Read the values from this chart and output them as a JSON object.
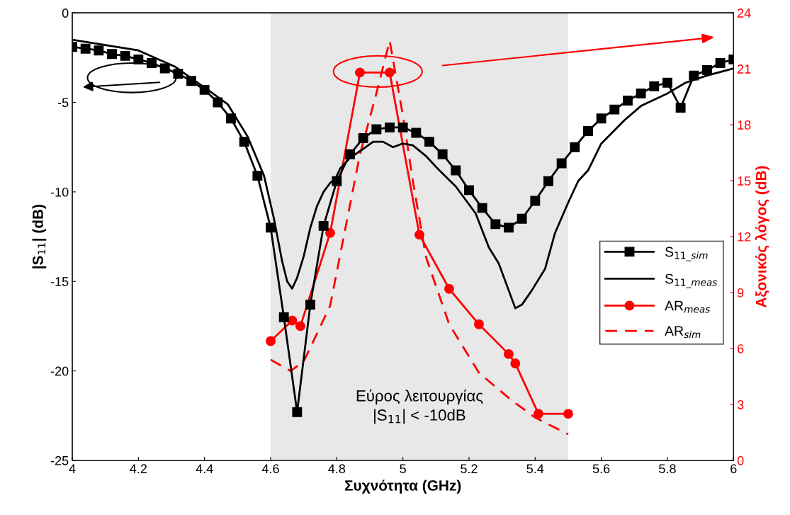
{
  "chart_data": {
    "type": "line",
    "xlabel": "Συχνότητα (GHz)",
    "ylabel": "|S$_{11}$| (dB)",
    "y2label": "Αξονικός λόγος (dB)",
    "xlim": [
      4,
      6
    ],
    "xticks": [
      4,
      4.2,
      4.4,
      4.6,
      4.8,
      5,
      5.2,
      5.4,
      5.6,
      5.8,
      6
    ],
    "ylim": [
      -25,
      0
    ],
    "yticks": [
      -25,
      -20,
      -15,
      -10,
      -5,
      0
    ],
    "y2lim": [
      0,
      24
    ],
    "y2ticks": [
      0,
      3,
      6,
      9,
      12,
      15,
      18,
      21,
      24
    ],
    "grid": false,
    "legend": "right",
    "bands": [
      {
        "axis": "x",
        "from": 4.6,
        "to": 5.5,
        "label": "Εύρος λειτουργίας\n|S$_{11}$| < -10dB",
        "color": "#e8e8e8"
      }
    ],
    "series": [
      {
        "name": "S$_{11_sim}$",
        "color": "#000000",
        "marker": "square",
        "line_style": "solid",
        "x": [
          4.0,
          4.04,
          4.08,
          4.12,
          4.16,
          4.2,
          4.24,
          4.28,
          4.32,
          4.36,
          4.4,
          4.44,
          4.48,
          4.52,
          4.56,
          4.6,
          4.64,
          4.68,
          4.72,
          4.76,
          4.8,
          4.84,
          4.88,
          4.92,
          4.96,
          5.0,
          5.04,
          5.08,
          5.12,
          5.16,
          5.2,
          5.24,
          5.28,
          5.32,
          5.36,
          5.4,
          5.44,
          5.48,
          5.52,
          5.56,
          5.6,
          5.64,
          5.68,
          5.72,
          5.76,
          5.8,
          5.84,
          5.88,
          5.92,
          5.96,
          6.0
        ],
        "values": [
          -1.9,
          -2.0,
          -2.1,
          -2.3,
          -2.4,
          -2.6,
          -2.8,
          -3.1,
          -3.4,
          -3.8,
          -4.3,
          -5.0,
          -5.9,
          -7.2,
          -9.1,
          -12.0,
          -17.0,
          -22.3,
          -16.3,
          -11.9,
          -9.4,
          -7.9,
          -7.0,
          -6.5,
          -6.4,
          -6.4,
          -6.7,
          -7.2,
          -7.9,
          -8.8,
          -9.9,
          -10.9,
          -11.8,
          -12.0,
          -11.5,
          -10.5,
          -9.4,
          -8.4,
          -7.5,
          -6.6,
          -5.9,
          -5.4,
          -4.9,
          -4.5,
          -4.1,
          -3.9,
          -5.3,
          -3.5,
          -3.2,
          -2.8,
          -2.6
        ]
      },
      {
        "name": "S$_{11_meas}$",
        "color": "#000000",
        "marker": "none",
        "line_style": "solid",
        "x": [
          4.0,
          4.1,
          4.2,
          4.31,
          4.41,
          4.47,
          4.53,
          4.58,
          4.61,
          4.635,
          4.65,
          4.665,
          4.68,
          4.7,
          4.72,
          4.74,
          4.76,
          4.78,
          4.795,
          4.81,
          4.84,
          4.88,
          4.91,
          4.94,
          4.97,
          5.0,
          5.03,
          5.07,
          5.105,
          5.16,
          5.22,
          5.26,
          5.29,
          5.32,
          5.34,
          5.36,
          5.39,
          5.43,
          5.46,
          5.5,
          5.53,
          5.56,
          5.6,
          5.67,
          5.72,
          5.8,
          5.855,
          5.92,
          5.98,
          6.0
        ],
        "values": [
          -1.5,
          -1.8,
          -2.1,
          -3.0,
          -4.3,
          -5.1,
          -6.9,
          -9.1,
          -11.5,
          -13.9,
          -15.0,
          -15.4,
          -14.8,
          -13.6,
          -12.0,
          -10.8,
          -10.0,
          -9.5,
          -9.3,
          -8.7,
          -8.1,
          -7.6,
          -7.2,
          -7.2,
          -7.5,
          -7.3,
          -7.4,
          -8.0,
          -8.7,
          -9.7,
          -11.2,
          -13.1,
          -14.0,
          -15.5,
          -16.5,
          -16.3,
          -15.5,
          -14.3,
          -12.3,
          -10.6,
          -9.4,
          -8.8,
          -7.3,
          -6.0,
          -5.2,
          -4.5,
          -3.9,
          -3.5,
          -3.2,
          -3.1
        ]
      },
      {
        "name": "AR$_{meas}$",
        "color": "#ff0000",
        "marker": "circle",
        "line_style": "solid",
        "axis": "y2",
        "x": [
          4.6,
          4.665,
          4.69,
          4.78,
          4.87,
          4.96,
          5.05,
          5.14,
          5.23,
          5.32,
          5.34,
          5.41,
          5.5
        ],
        "values": [
          6.4,
          7.5,
          7.2,
          12.2,
          20.8,
          20.8,
          12.1,
          9.2,
          7.3,
          5.7,
          5.2,
          2.5,
          2.5
        ]
      },
      {
        "name": "AR$_{sim}$",
        "color": "#ff0000",
        "marker": "none",
        "line_style": "dashed",
        "axis": "y2",
        "x": [
          4.6,
          4.66,
          4.7,
          4.78,
          4.87,
          4.92,
          4.96,
          5.0,
          5.03,
          5.07,
          5.14,
          5.23,
          5.33,
          5.4,
          5.5
        ],
        "values": [
          5.4,
          4.8,
          5.3,
          8.3,
          16.4,
          19.7,
          22.5,
          18.5,
          15.0,
          10.9,
          7.3,
          4.7,
          3.2,
          2.3,
          1.4
        ]
      }
    ]
  }
}
